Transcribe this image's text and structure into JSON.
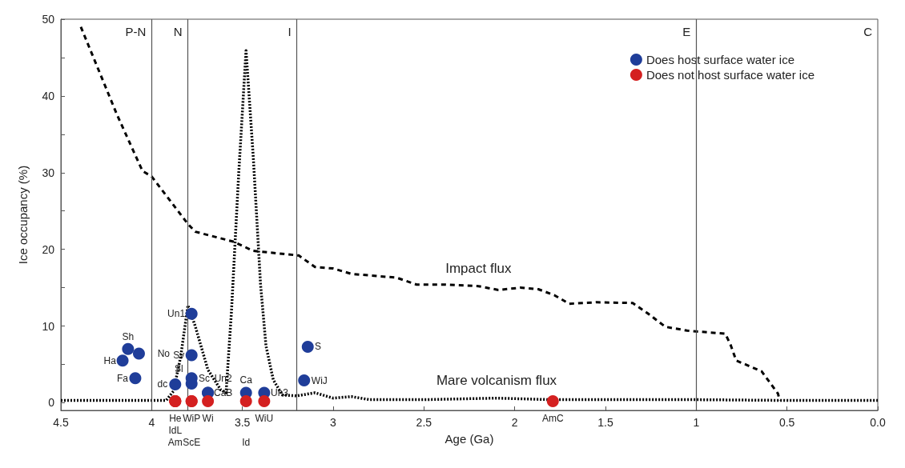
{
  "chart_data": {
    "type": "scatter",
    "xlabel": "Age (Ga)",
    "ylabel": "Ice occupancy (%)",
    "xlim": [
      4.5,
      0
    ],
    "xticks": [
      4.5,
      4,
      3.5,
      3,
      2.5,
      2,
      1.5,
      1,
      0.5,
      {
        "value": 0,
        "label": "0.0"
      }
    ],
    "ylim": [
      -1,
      50
    ],
    "yticks": [
      0,
      {
        "value": 5,
        "label": null
      },
      10,
      {
        "value": 15,
        "label": null
      },
      20,
      {
        "value": 25,
        "label": null
      },
      30,
      {
        "value": 35,
        "label": null
      },
      40,
      {
        "value": 45,
        "label": null
      },
      50
    ],
    "grid": false,
    "legend": "top right",
    "series": [
      {
        "type": "line",
        "name": "Impact flux",
        "color": "#000000",
        "line_style": "dashed",
        "marker": "none",
        "x": [
          4.39,
          4.19,
          4.05,
          4.0,
          3.8,
          3.76,
          3.55,
          3.44,
          3.19,
          3.1,
          3.0,
          2.9,
          2.65,
          2.54,
          2.39,
          2.2,
          2.09,
          1.97,
          1.87,
          1.78,
          1.7,
          1.55,
          1.35,
          1.27,
          1.17,
          1.05,
          0.84,
          0.81,
          0.78,
          0.64,
          0.55,
          0.54
        ],
        "values": [
          49,
          37.5,
          30.2,
          29.5,
          23.3,
          22.3,
          21,
          19.8,
          19.2,
          17.7,
          17.5,
          16.8,
          16.3,
          15.4,
          15.4,
          15.2,
          14.7,
          15,
          14.8,
          14,
          12.9,
          13.1,
          13,
          11.7,
          9.9,
          9.4,
          9,
          7.5,
          5.5,
          4.1,
          1.2,
          0.3
        ]
      },
      {
        "type": "line",
        "name": "Mare volcanism flux",
        "color": "#000000",
        "line_style": "dotted",
        "marker": "none",
        "x": [
          4.5,
          3.92,
          3.88,
          3.84,
          3.8,
          3.76,
          3.69,
          3.62,
          3.59,
          3.56,
          3.52,
          3.48,
          3.44,
          3.4,
          3.37,
          3.33,
          3.28,
          3.2,
          3.1,
          3.0,
          2.9,
          2.8,
          2.5,
          2.1,
          1.8,
          1.5,
          1.0,
          0.5,
          0
        ],
        "values": [
          0.3,
          0.3,
          1.5,
          6,
          12.7,
          10,
          4.3,
          1.7,
          1.3,
          12,
          30,
          45.9,
          32,
          15.4,
          7.4,
          3,
          1.0,
          0.9,
          1.3,
          0.6,
          0.8,
          0.4,
          0.4,
          0.6,
          0.4,
          0.4,
          0.4,
          0.3,
          0.3
        ]
      },
      {
        "name": "Does host surface water ice",
        "color": "#1f3d99",
        "marker": "circle",
        "x": [
          4.13,
          4.07,
          4.16,
          4.09,
          3.78,
          3.78,
          3.78,
          3.78,
          3.87,
          3.69,
          3.69,
          3.48,
          3.38,
          3.14,
          3.16
        ],
        "values": [
          7.0,
          6.4,
          5.5,
          3.2,
          11.6,
          6.2,
          3.2,
          2.5,
          2.4,
          1.3,
          1.3,
          1.3,
          1.3,
          7.3,
          2.9
        ],
        "value_labels": [
          "Sh",
          "No",
          "Ha",
          "Fa",
          "Un1",
          "Sv",
          "Sc",
          "Sl",
          "dc",
          "CaB",
          "Un2",
          "Ca",
          "Un3",
          "S",
          "WiJ"
        ]
      },
      {
        "name": "Does not host surface water ice",
        "color": "#d42020",
        "marker": "circle",
        "x": [
          3.87,
          3.87,
          3.87,
          3.78,
          3.78,
          3.69,
          3.48,
          3.38,
          1.79
        ],
        "values": [
          0.2,
          0.2,
          0.2,
          0.2,
          0.2,
          0.2,
          0.2,
          0.2,
          0.2
        ],
        "value_labels": [
          "He",
          "IdL",
          "Am",
          "WiP",
          "ScE",
          "Wi",
          "Id",
          "WiU",
          "AmC"
        ]
      }
    ],
    "ref_lines": [
      {
        "axis": "x",
        "value": 4.0,
        "label": "P-N",
        "color": "#555555"
      },
      {
        "axis": "x",
        "value": 3.8,
        "label": "N",
        "color": "#555555"
      },
      {
        "axis": "x",
        "value": 3.2,
        "label": "I",
        "color": "#555555"
      },
      {
        "axis": "x",
        "value": 1.0,
        "label": "E",
        "color": "#555555"
      }
    ],
    "annotations": [
      "C"
    ]
  }
}
